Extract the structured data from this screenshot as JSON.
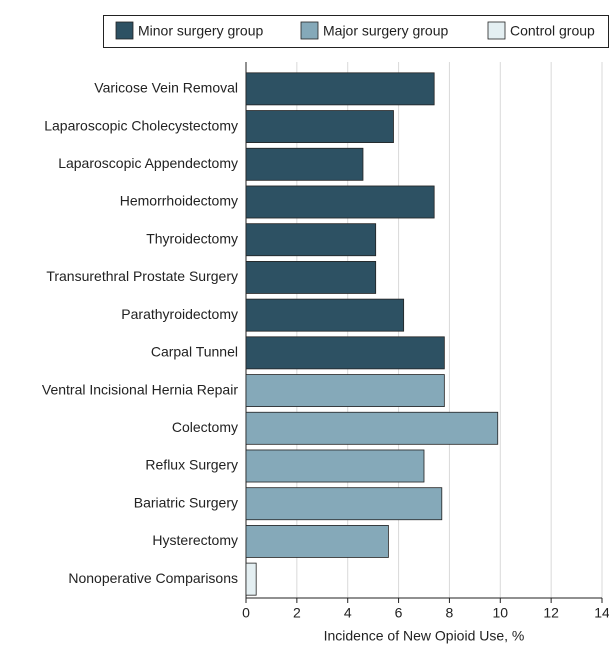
{
  "chart_data": {
    "type": "bar",
    "orientation": "horizontal",
    "categories": [
      "Varicose Vein Removal",
      "Laparoscopic Cholecystectomy",
      "Laparoscopic Appendectomy",
      "Hemorrhoidectomy",
      "Thyroidectomy",
      "Transurethral Prostate Surgery",
      "Parathyroidectomy",
      "Carpal Tunnel",
      "Ventral Incisional Hernia Repair",
      "Colectomy",
      "Reflux Surgery",
      "Bariatric Surgery",
      "Hysterectomy",
      "Nonoperative Comparisons"
    ],
    "series": [
      {
        "name": "Minor surgery group",
        "color": "#2d5163",
        "values": [
          7.4,
          5.8,
          4.6,
          7.4,
          5.1,
          5.1,
          6.2,
          7.8,
          null,
          null,
          null,
          null,
          null,
          null
        ]
      },
      {
        "name": "Major surgery group",
        "color": "#85a9b9",
        "values": [
          null,
          null,
          null,
          null,
          null,
          null,
          null,
          null,
          7.8,
          9.9,
          7.0,
          7.7,
          5.6,
          null
        ]
      },
      {
        "name": "Control group",
        "color": "#e4eff2",
        "values": [
          null,
          null,
          null,
          null,
          null,
          null,
          null,
          null,
          null,
          null,
          null,
          null,
          null,
          0.4
        ]
      }
    ],
    "xlabel": "Incidence of New Opioid Use, %",
    "xlim": [
      0,
      14
    ],
    "xticks": [
      0,
      2,
      4,
      6,
      8,
      10,
      12,
      14
    ],
    "grid": true,
    "legend": "top"
  }
}
